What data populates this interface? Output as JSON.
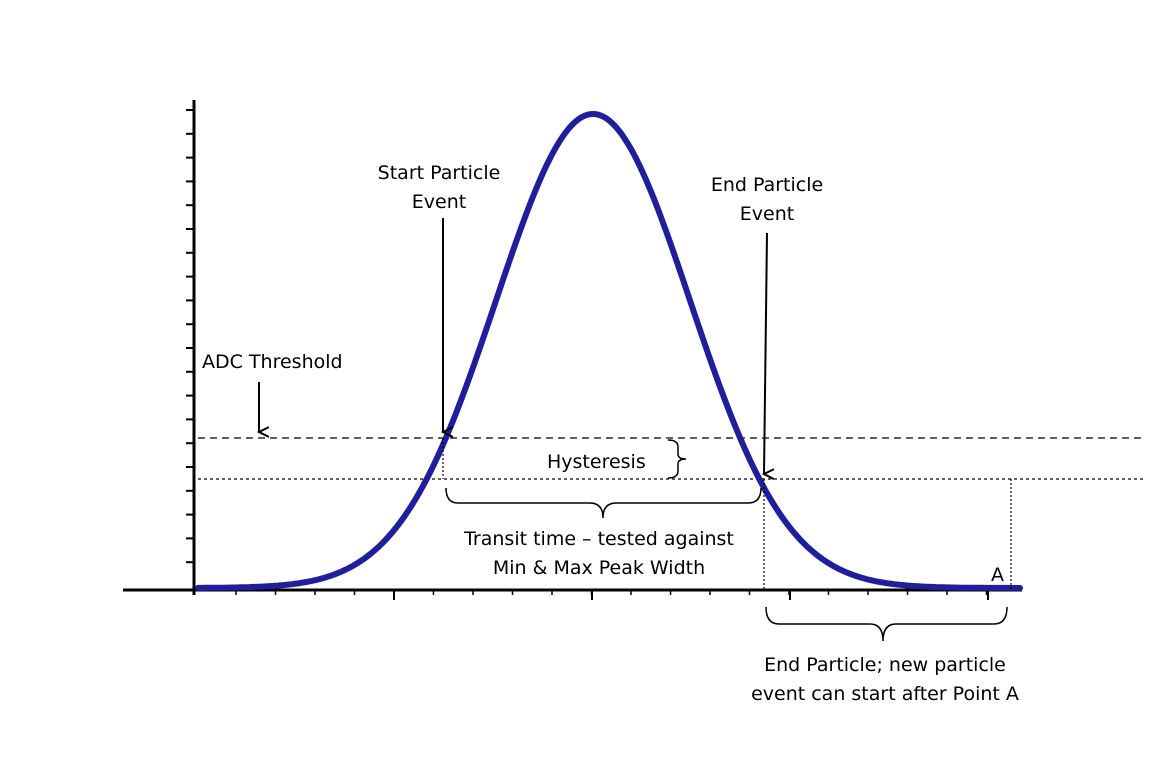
{
  "colors": {
    "curve": "#1f1f9e",
    "ink": "#000000",
    "background": "#ffffff"
  },
  "labels": {
    "start_line1": "Start Particle",
    "start_line2": "Event",
    "end_line1": "End Particle",
    "end_line2": "Event",
    "adc_threshold": "ADC Threshold",
    "hysteresis": "Hysteresis",
    "transit_line1": "Transit time – tested against",
    "transit_line2": "Min & Max Peak Width",
    "point_a": "A",
    "end_note_line1": "End Particle; new particle",
    "end_note_line2": "event can start  after Point A"
  }
}
